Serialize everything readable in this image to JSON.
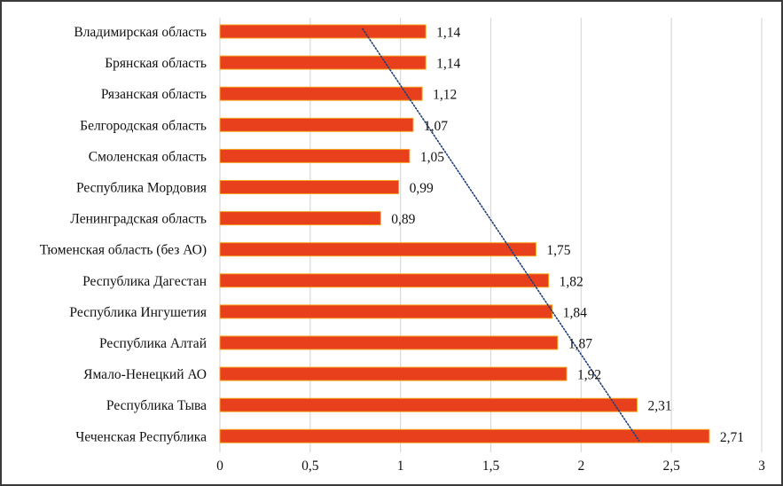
{
  "chart_data": {
    "type": "bar",
    "orientation": "horizontal",
    "title": "",
    "xlabel": "",
    "ylabel": "",
    "xlim": [
      0,
      3
    ],
    "x_ticks": [
      0,
      0.5,
      1,
      1.5,
      2,
      2.5,
      3
    ],
    "x_tick_labels": [
      "0",
      "0,5",
      "1",
      "1,5",
      "2",
      "2,5",
      "3"
    ],
    "grid": "vertical",
    "legend": "none",
    "bar_color": "#e8401c",
    "bar_edge_color": "#f5a623",
    "trendline_color": "#1f3f7a",
    "trendline_style": "dotted",
    "categories": [
      "Владимирская область",
      "Брянская область",
      "Рязанская область",
      "Белгородская область",
      "Смоленская область",
      "Республика Мордовия",
      "Ленинградская область",
      "Тюменская область (без АО)",
      "Республика Дагестан",
      "Республика Ингушетия",
      "Республика Алтай",
      "Ямало-Ненецкий АО",
      "Республика Тыва",
      "Чеченская Республика"
    ],
    "values": [
      1.14,
      1.14,
      1.12,
      1.07,
      1.05,
      0.99,
      0.89,
      1.75,
      1.82,
      1.84,
      1.87,
      1.92,
      2.31,
      2.71
    ],
    "value_labels": [
      "1,14",
      "1,14",
      "1,12",
      "1,07",
      "1,05",
      "0,99",
      "0,89",
      "1,75",
      "1,82",
      "1,84",
      "1,87",
      "1,92",
      "2,31",
      "2,71"
    ],
    "trendline": {
      "type": "linear",
      "start_value": 0.79,
      "end_value": 2.32
    }
  }
}
